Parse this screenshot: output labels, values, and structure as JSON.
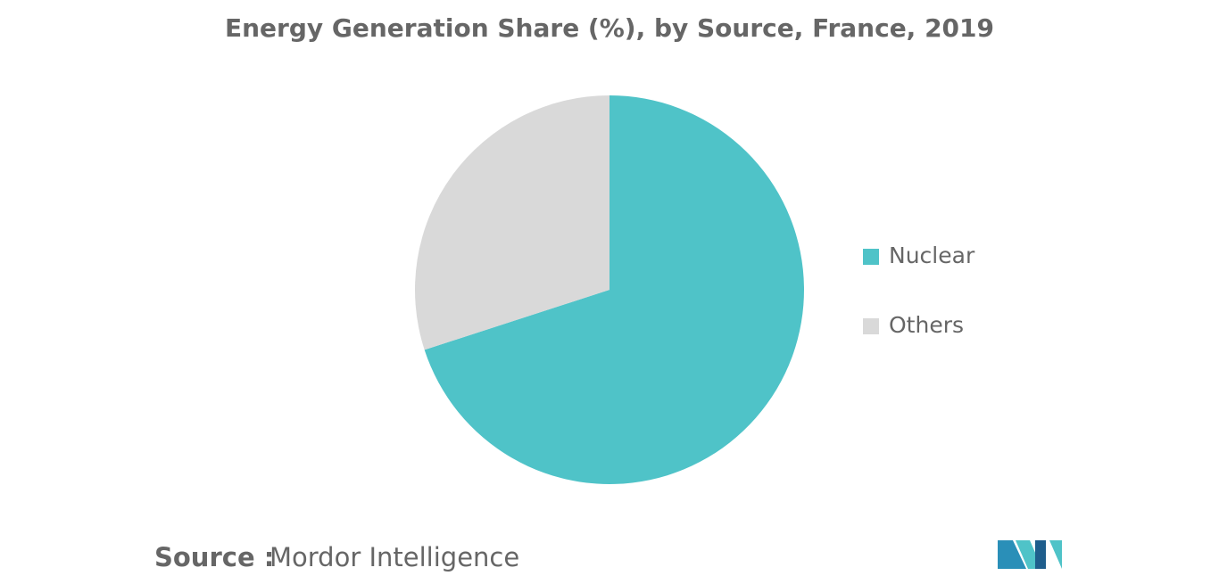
{
  "chart_data": {
    "type": "pie",
    "title": "Energy Generation Share (%), by Source, France, 2019",
    "categories": [
      "Nuclear",
      "Others"
    ],
    "values": [
      70,
      30
    ],
    "colors": [
      "#4fc3c8",
      "#d9d9d9"
    ],
    "legend": "right",
    "source": {
      "label": "Source :",
      "name": "Mordor Intelligence"
    }
  }
}
